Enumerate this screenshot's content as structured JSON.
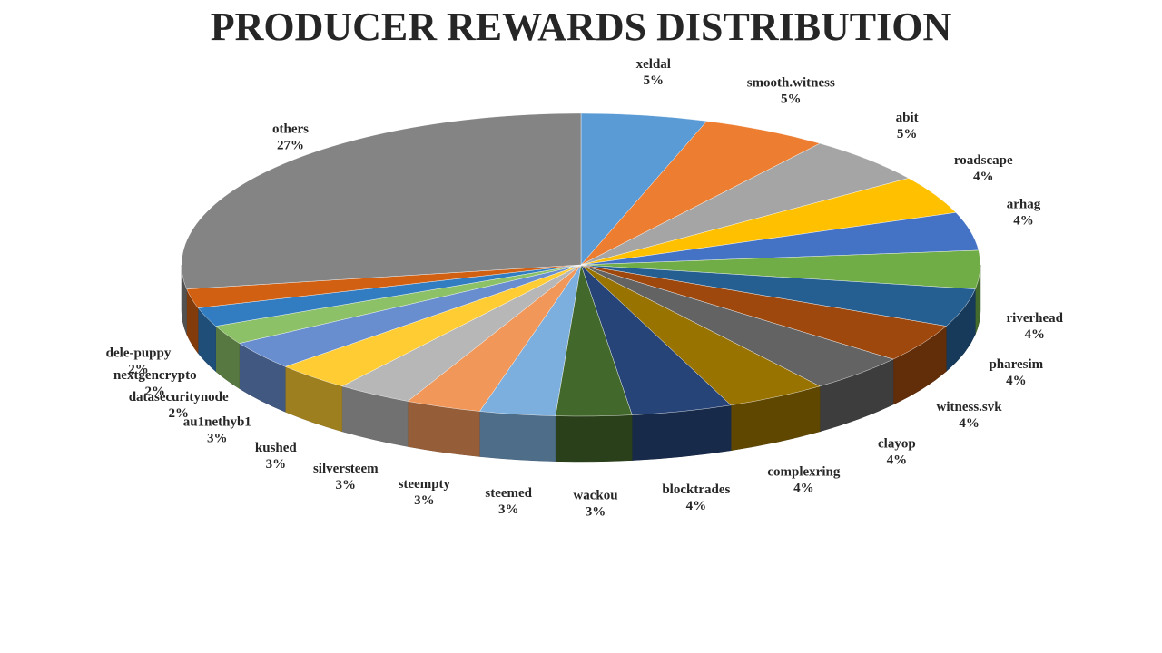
{
  "chart_data": {
    "type": "pie",
    "title": "PRODUCER REWARDS DISTRIBUTION",
    "categories": [
      "xeldal",
      "smooth.witness",
      "abit",
      "roadscape",
      "arhag",
      "riverhead",
      "pharesim",
      "witness.svk",
      "clayop",
      "complexring",
      "blocktrades",
      "wackou",
      "steemed",
      "steempty",
      "silversteem",
      "kushed",
      "au1nethyb1",
      "datasecuritynode",
      "nextgencrypto",
      "dele-puppy",
      "others"
    ],
    "values": [
      5,
      5,
      5,
      4,
      4,
      4,
      4,
      4,
      4,
      4,
      4,
      3,
      3,
      3,
      3,
      3,
      3,
      2,
      2,
      2,
      27
    ],
    "value_labels": [
      "5%",
      "5%",
      "5%",
      "4%",
      "4%",
      "4%",
      "4%",
      "4%",
      "4%",
      "4%",
      "4%",
      "3%",
      "3%",
      "3%",
      "3%",
      "3%",
      "3%",
      "2%",
      "2%",
      "2%",
      "27%"
    ],
    "colors": [
      "#5b9bd5",
      "#ed7d31",
      "#a5a5a5",
      "#ffc000",
      "#4472c4",
      "#70ad47",
      "#255e91",
      "#9e480e",
      "#636363",
      "#997300",
      "#264478",
      "#43682b",
      "#7cafdd",
      "#f1975a",
      "#b7b7b7",
      "#ffcd33",
      "#698ed0",
      "#8cc168",
      "#327dc2",
      "#d26012",
      "#848484"
    ]
  }
}
